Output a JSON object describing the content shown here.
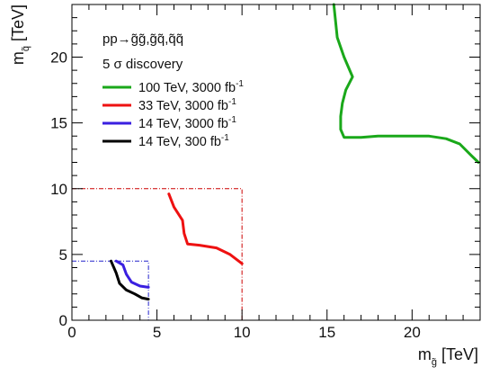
{
  "chart_data": {
    "type": "line",
    "xlabel": "m",
    "xlabel_sub": "g̃",
    "xlabel_unit": " [TeV]",
    "ylabel": "m",
    "ylabel_sub": "q̃",
    "ylabel_unit": " [TeV]",
    "xlim": [
      0,
      24
    ],
    "ylim": [
      0,
      24
    ],
    "x_ticks": [
      0,
      5,
      10,
      15,
      20
    ],
    "y_ticks": [
      0,
      5,
      10,
      15,
      20
    ],
    "grid": false,
    "legend_header": [
      "pp→g̃g̃,g̃q̃,q̃q̃",
      "5 σ discovery"
    ],
    "legend_placement": "top-left",
    "series": [
      {
        "name": "100 TeV, 3000 fb",
        "name_sup": "-1",
        "color": "#1aa81a",
        "points": [
          [
            15.4,
            24
          ],
          [
            15.6,
            21.5
          ],
          [
            16.0,
            20.0
          ],
          [
            16.5,
            18.5
          ],
          [
            16.1,
            17.5
          ],
          [
            15.9,
            16.5
          ],
          [
            15.8,
            15.5
          ],
          [
            15.8,
            14.5
          ],
          [
            16.0,
            13.9
          ],
          [
            17,
            13.9
          ],
          [
            18,
            14.0
          ],
          [
            19,
            14.0
          ],
          [
            20,
            14.0
          ],
          [
            21,
            14.0
          ],
          [
            22,
            13.8
          ],
          [
            22.8,
            13.4
          ],
          [
            23.5,
            12.5
          ],
          [
            23.9,
            12.0
          ]
        ]
      },
      {
        "name": "33 TeV, 3000 fb",
        "name_sup": "-1",
        "color": "#ee1111",
        "points": [
          [
            5.7,
            9.6
          ],
          [
            6.0,
            8.6
          ],
          [
            6.5,
            7.6
          ],
          [
            6.6,
            6.6
          ],
          [
            6.8,
            5.8
          ],
          [
            7.5,
            5.7
          ],
          [
            8.5,
            5.5
          ],
          [
            9.3,
            5.0
          ],
          [
            10.0,
            4.3
          ]
        ]
      },
      {
        "name": "14 TeV, 3000 fb",
        "name_sup": "-1",
        "color": "#3a1fe0",
        "points": [
          [
            2.6,
            4.5
          ],
          [
            3.0,
            4.2
          ],
          [
            3.2,
            3.5
          ],
          [
            3.5,
            2.9
          ],
          [
            4.0,
            2.6
          ],
          [
            4.5,
            2.5
          ]
        ]
      },
      {
        "name": "14 TeV, 300 fb",
        "name_sup": "-1",
        "color": "#000000",
        "points": [
          [
            2.3,
            4.5
          ],
          [
            2.6,
            3.6
          ],
          [
            2.8,
            2.8
          ],
          [
            3.2,
            2.3
          ],
          [
            3.7,
            2.0
          ],
          [
            4.1,
            1.7
          ],
          [
            4.5,
            1.6
          ]
        ]
      }
    ],
    "reference_boxes": [
      {
        "color": "#cc0000",
        "x": [
          0,
          10
        ],
        "y": [
          0,
          10
        ],
        "style": "dash-dot"
      },
      {
        "color": "#2222cc",
        "x": [
          0,
          4.5
        ],
        "y": [
          0,
          4.5
        ],
        "style": "dash-dot"
      }
    ]
  }
}
